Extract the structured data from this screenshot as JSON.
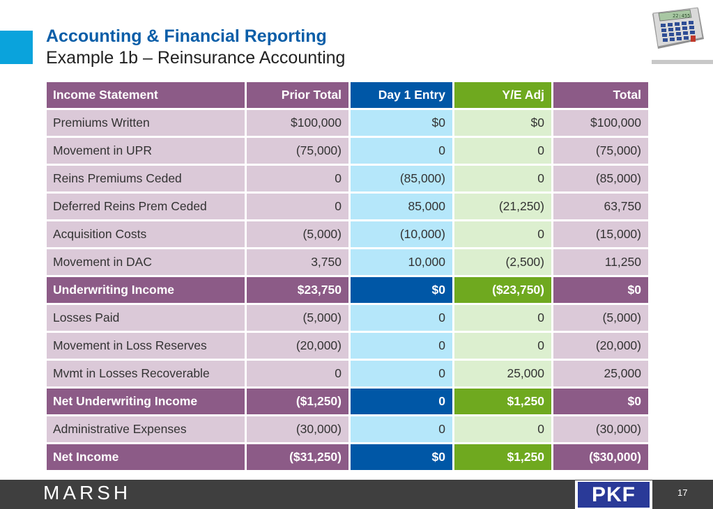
{
  "header": {
    "title": "Accounting & Financial Reporting",
    "subtitle": "Example 1b – Reinsurance Accounting"
  },
  "table": {
    "columns": [
      "Income Statement",
      "Prior Total",
      "Day 1 Entry",
      "Y/E Adj",
      "Total"
    ],
    "rows": [
      {
        "type": "normal",
        "cells": [
          "Premiums Written",
          "$100,000",
          "$0",
          "$0",
          "$100,000"
        ]
      },
      {
        "type": "normal",
        "cells": [
          "Movement in UPR",
          "(75,000)",
          "0",
          "0",
          "(75,000)"
        ]
      },
      {
        "type": "normal",
        "cells": [
          "Reins Premiums Ceded",
          "0",
          "(85,000)",
          "0",
          "(85,000)"
        ]
      },
      {
        "type": "normal",
        "cells": [
          "Deferred Reins Prem Ceded",
          "0",
          "85,000",
          "(21,250)",
          "63,750"
        ]
      },
      {
        "type": "normal",
        "cells": [
          "Acquisition Costs",
          "(5,000)",
          "(10,000)",
          "0",
          "(15,000)"
        ]
      },
      {
        "type": "normal",
        "cells": [
          "Movement in DAC",
          "3,750",
          "10,000",
          "(2,500)",
          "11,250"
        ]
      },
      {
        "type": "sub",
        "cells": [
          "Underwriting Income",
          "$23,750",
          "$0",
          "($23,750)",
          "$0"
        ]
      },
      {
        "type": "normal",
        "cells": [
          "Losses Paid",
          "(5,000)",
          "0",
          "0",
          "(5,000)"
        ]
      },
      {
        "type": "normal",
        "cells": [
          "Movement in Loss Reserves",
          "(20,000)",
          "0",
          "0",
          "(20,000)"
        ]
      },
      {
        "type": "normal",
        "cells": [
          "Mvmt in Losses Recoverable",
          "0",
          "0",
          "25,000",
          "25,000"
        ]
      },
      {
        "type": "sub",
        "cells": [
          "Net Underwriting Income",
          "($1,250)",
          "0",
          "$1,250",
          "$0"
        ]
      },
      {
        "type": "normal",
        "cells": [
          "Administrative Expenses",
          "(30,000)",
          "0",
          "0",
          "(30,000)"
        ]
      },
      {
        "type": "sub",
        "cells": [
          "Net Income",
          "($31,250)",
          "$0",
          "$1,250",
          "($30,000)"
        ]
      }
    ]
  },
  "calculator": {
    "icon": "calculator-icon",
    "display": "22:455"
  },
  "footer": {
    "brand": "MARSH",
    "partner_logo": "PKF",
    "page_number": "17"
  },
  "colors": {
    "accent": "#0aa3dc",
    "title": "#0b5ea8",
    "purple": "#8c5b87",
    "purple_light": "#dbc9d8",
    "blue": "#0057a6",
    "blue_light": "#b5e7fa",
    "green": "#6fa91f",
    "green_light": "#dcefcf",
    "footer": "#3f3f3f"
  }
}
